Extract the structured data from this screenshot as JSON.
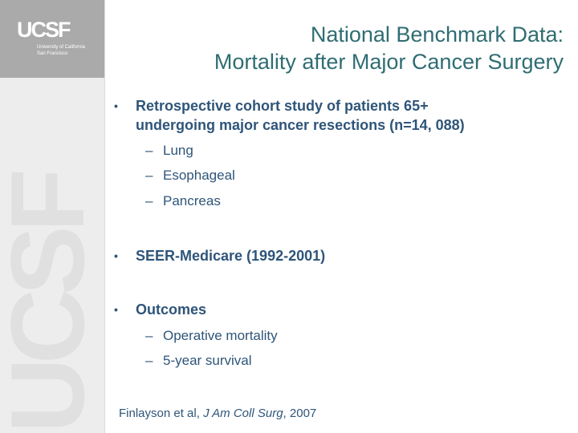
{
  "logo": {
    "mark": "UCSF",
    "line1": "University of California",
    "line2": "San Francisco",
    "watermark": "UCSF"
  },
  "title": {
    "line1": "National Benchmark Data:",
    "line2": "Mortality after Major Cancer Surgery"
  },
  "bullets": [
    {
      "line1": "Retrospective cohort study of patients 65+",
      "line2": "undergoing major cancer resections (n=14, 088)",
      "subs": [
        "Lung",
        "Esophageal",
        "Pancreas"
      ]
    },
    {
      "line1": "SEER-Medicare (1992-2001)"
    },
    {
      "line1": "Outcomes",
      "subs": [
        "Operative mortality",
        "5-year survival"
      ]
    }
  ],
  "bullet_symbol": "•",
  "sub_symbol": "–",
  "citation": {
    "authors": "Finlayson et al, ",
    "journal": "J Am Coll Surg",
    "year": ", 2007"
  },
  "colors": {
    "title": "#2f6d72",
    "body": "#2e5579",
    "sidebar": "#ededed",
    "logo_box": "#a9aaa9"
  }
}
